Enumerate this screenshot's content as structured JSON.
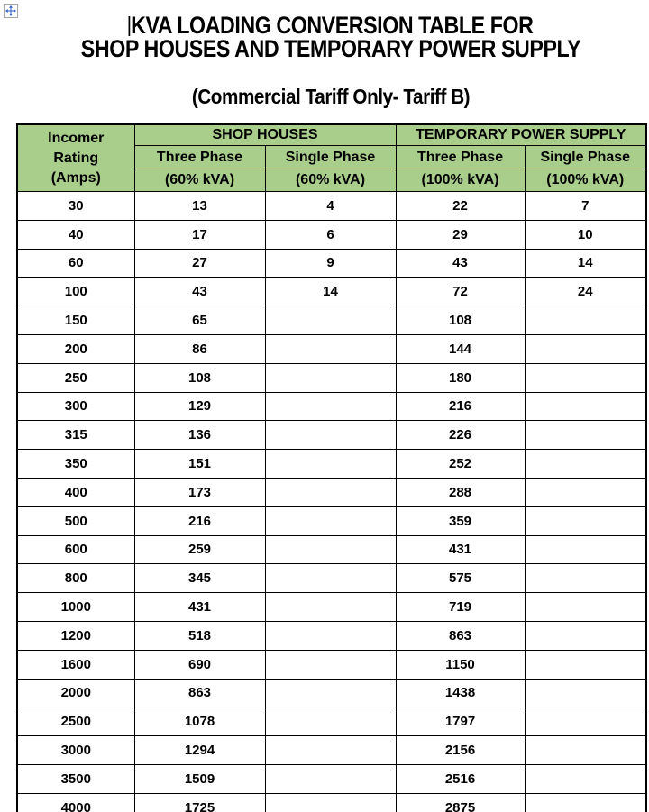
{
  "header": {
    "title_line1": "KVA LOADING CONVERSION TABLE FOR",
    "title_line2": "SHOP HOUSES AND TEMPORARY POWER SUPPLY",
    "subtitle": "(Commercial Tariff Only- Tariff B)"
  },
  "icons": {
    "move_handle": "table-move-handle"
  },
  "colors": {
    "header_green": "#a9ce8c",
    "table_border": "#000000",
    "handle_arrow_blue": "#3a66c4"
  },
  "table": {
    "corner": {
      "line1": "Incomer",
      "line2": "Rating",
      "line3": "(Amps)"
    },
    "groups": [
      {
        "label": "SHOP HOUSES",
        "columns": [
          {
            "phase": "Three Phase",
            "kva": "(60% kVA)"
          },
          {
            "phase": "Single Phase",
            "kva": "(60% kVA)"
          }
        ]
      },
      {
        "label": "TEMPORARY POWER SUPPLY",
        "columns": [
          {
            "phase": "Three Phase",
            "kva": "(100% kVA)"
          },
          {
            "phase": "Single Phase",
            "kva": "(100% kVA)"
          }
        ]
      }
    ],
    "rows": [
      [
        "30",
        "13",
        "4",
        "22",
        "7"
      ],
      [
        "40",
        "17",
        "6",
        "29",
        "10"
      ],
      [
        "60",
        "27",
        "9",
        "43",
        "14"
      ],
      [
        "100",
        "43",
        "14",
        "72",
        "24"
      ],
      [
        "150",
        "65",
        "",
        "108",
        ""
      ],
      [
        "200",
        "86",
        "",
        "144",
        ""
      ],
      [
        "250",
        "108",
        "",
        "180",
        ""
      ],
      [
        "300",
        "129",
        "",
        "216",
        ""
      ],
      [
        "315",
        "136",
        "",
        "226",
        ""
      ],
      [
        "350",
        "151",
        "",
        "252",
        ""
      ],
      [
        "400",
        "173",
        "",
        "288",
        ""
      ],
      [
        "500",
        "216",
        "",
        "359",
        ""
      ],
      [
        "600",
        "259",
        "",
        "431",
        ""
      ],
      [
        "800",
        "345",
        "",
        "575",
        ""
      ],
      [
        "1000",
        "431",
        "",
        "719",
        ""
      ],
      [
        "1200",
        "518",
        "",
        "863",
        ""
      ],
      [
        "1600",
        "690",
        "",
        "1150",
        ""
      ],
      [
        "2000",
        "863",
        "",
        "1438",
        ""
      ],
      [
        "2500",
        "1078",
        "",
        "1797",
        ""
      ],
      [
        "3000",
        "1294",
        "",
        "2156",
        ""
      ],
      [
        "3500",
        "1509",
        "",
        "2516",
        ""
      ],
      [
        "4000",
        "1725",
        "",
        "2875",
        ""
      ]
    ]
  }
}
